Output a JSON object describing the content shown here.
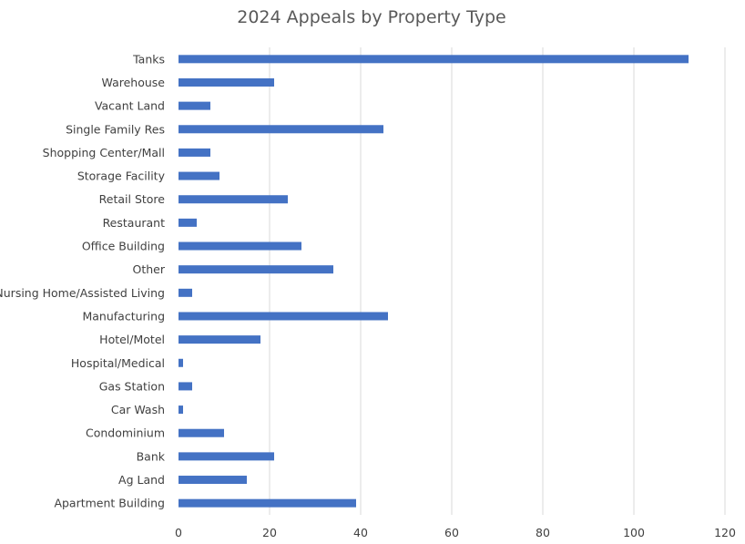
{
  "chart_data": {
    "type": "bar",
    "orientation": "horizontal",
    "title": "2024 Appeals by Property Type",
    "xlabel": "",
    "ylabel": "",
    "xlim": [
      0,
      120
    ],
    "xticks": [
      0,
      20,
      40,
      60,
      80,
      100,
      120
    ],
    "grid": true,
    "bar_color": "#4472C4",
    "grid_color": "#D9D9D9",
    "categories": [
      "Tanks",
      "Warehouse",
      "Vacant Land",
      "Single Family Res",
      "Shopping Center/Mall",
      "Storage Facility",
      "Retail Store",
      "Restaurant",
      "Office Building",
      "Other",
      "Nursing Home/Assisted Living",
      "Manufacturing",
      "Hotel/Motel",
      "Hospital/Medical",
      "Gas Station",
      "Car Wash",
      "Condominium",
      "Bank",
      "Ag Land",
      "Apartment Building"
    ],
    "values": [
      112,
      21,
      7,
      45,
      7,
      9,
      24,
      4,
      27,
      34,
      3,
      46,
      18,
      1,
      3,
      1,
      10,
      21,
      15,
      39
    ]
  }
}
